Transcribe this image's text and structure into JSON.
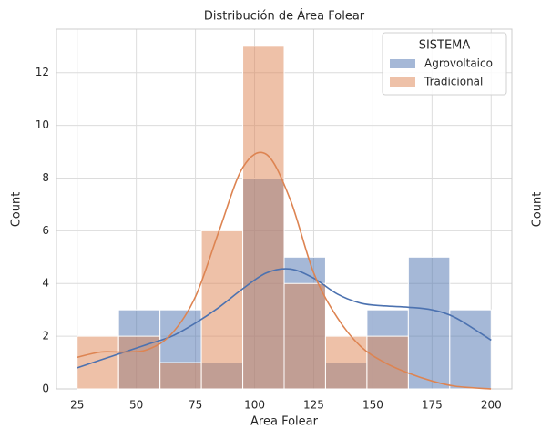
{
  "chart_data": [
    {
      "type": "histogram",
      "title": "Distribución de Área Folear",
      "xlabel": "Area Folear",
      "ylabel": "Count",
      "bins": [
        25,
        42.5,
        60,
        77.5,
        95,
        112.5,
        130,
        147.5,
        165,
        182.5,
        200
      ],
      "series": [
        {
          "name": "Agrovoltaico",
          "color": "#4c72b0",
          "values": [
            0,
            3,
            3,
            1,
            8,
            5,
            1,
            3,
            5,
            3
          ],
          "kde": [
            0.8,
            1.1,
            1.4,
            1.7,
            2.0,
            2.5,
            3.1,
            3.8,
            4.4,
            4.55,
            4.2,
            3.6,
            3.25,
            3.15,
            3.1,
            3.0,
            2.7,
            1.85
          ]
        },
        {
          "name": "Tradicional",
          "color": "#dd8452",
          "values": [
            2,
            2,
            1,
            6,
            13,
            4,
            2,
            2,
            0,
            0
          ],
          "kde": [
            1.2,
            1.4,
            1.4,
            1.5,
            2.1,
            3.5,
            6.0,
            8.4,
            8.9,
            7.2,
            4.4,
            2.7,
            1.6,
            1.0,
            0.6,
            0.3,
            0.1,
            0
          ]
        }
      ],
      "kde_x": [
        25,
        35,
        45,
        55,
        65,
        75,
        85,
        95,
        105,
        115,
        125,
        135,
        145,
        155,
        165,
        175,
        185,
        200
      ],
      "legend_title": "SISTEMA",
      "legend": "upper right",
      "xlim": [
        16.25,
        208.75
      ],
      "ylim": [
        0,
        13.65
      ],
      "xticks": [
        25,
        50,
        75,
        100,
        125,
        150,
        175,
        200
      ],
      "yticks": [
        0,
        2,
        4,
        6,
        8,
        10,
        12
      ],
      "grid": true
    },
    {
      "type": "histogram",
      "ylabel": "Count"
    }
  ]
}
